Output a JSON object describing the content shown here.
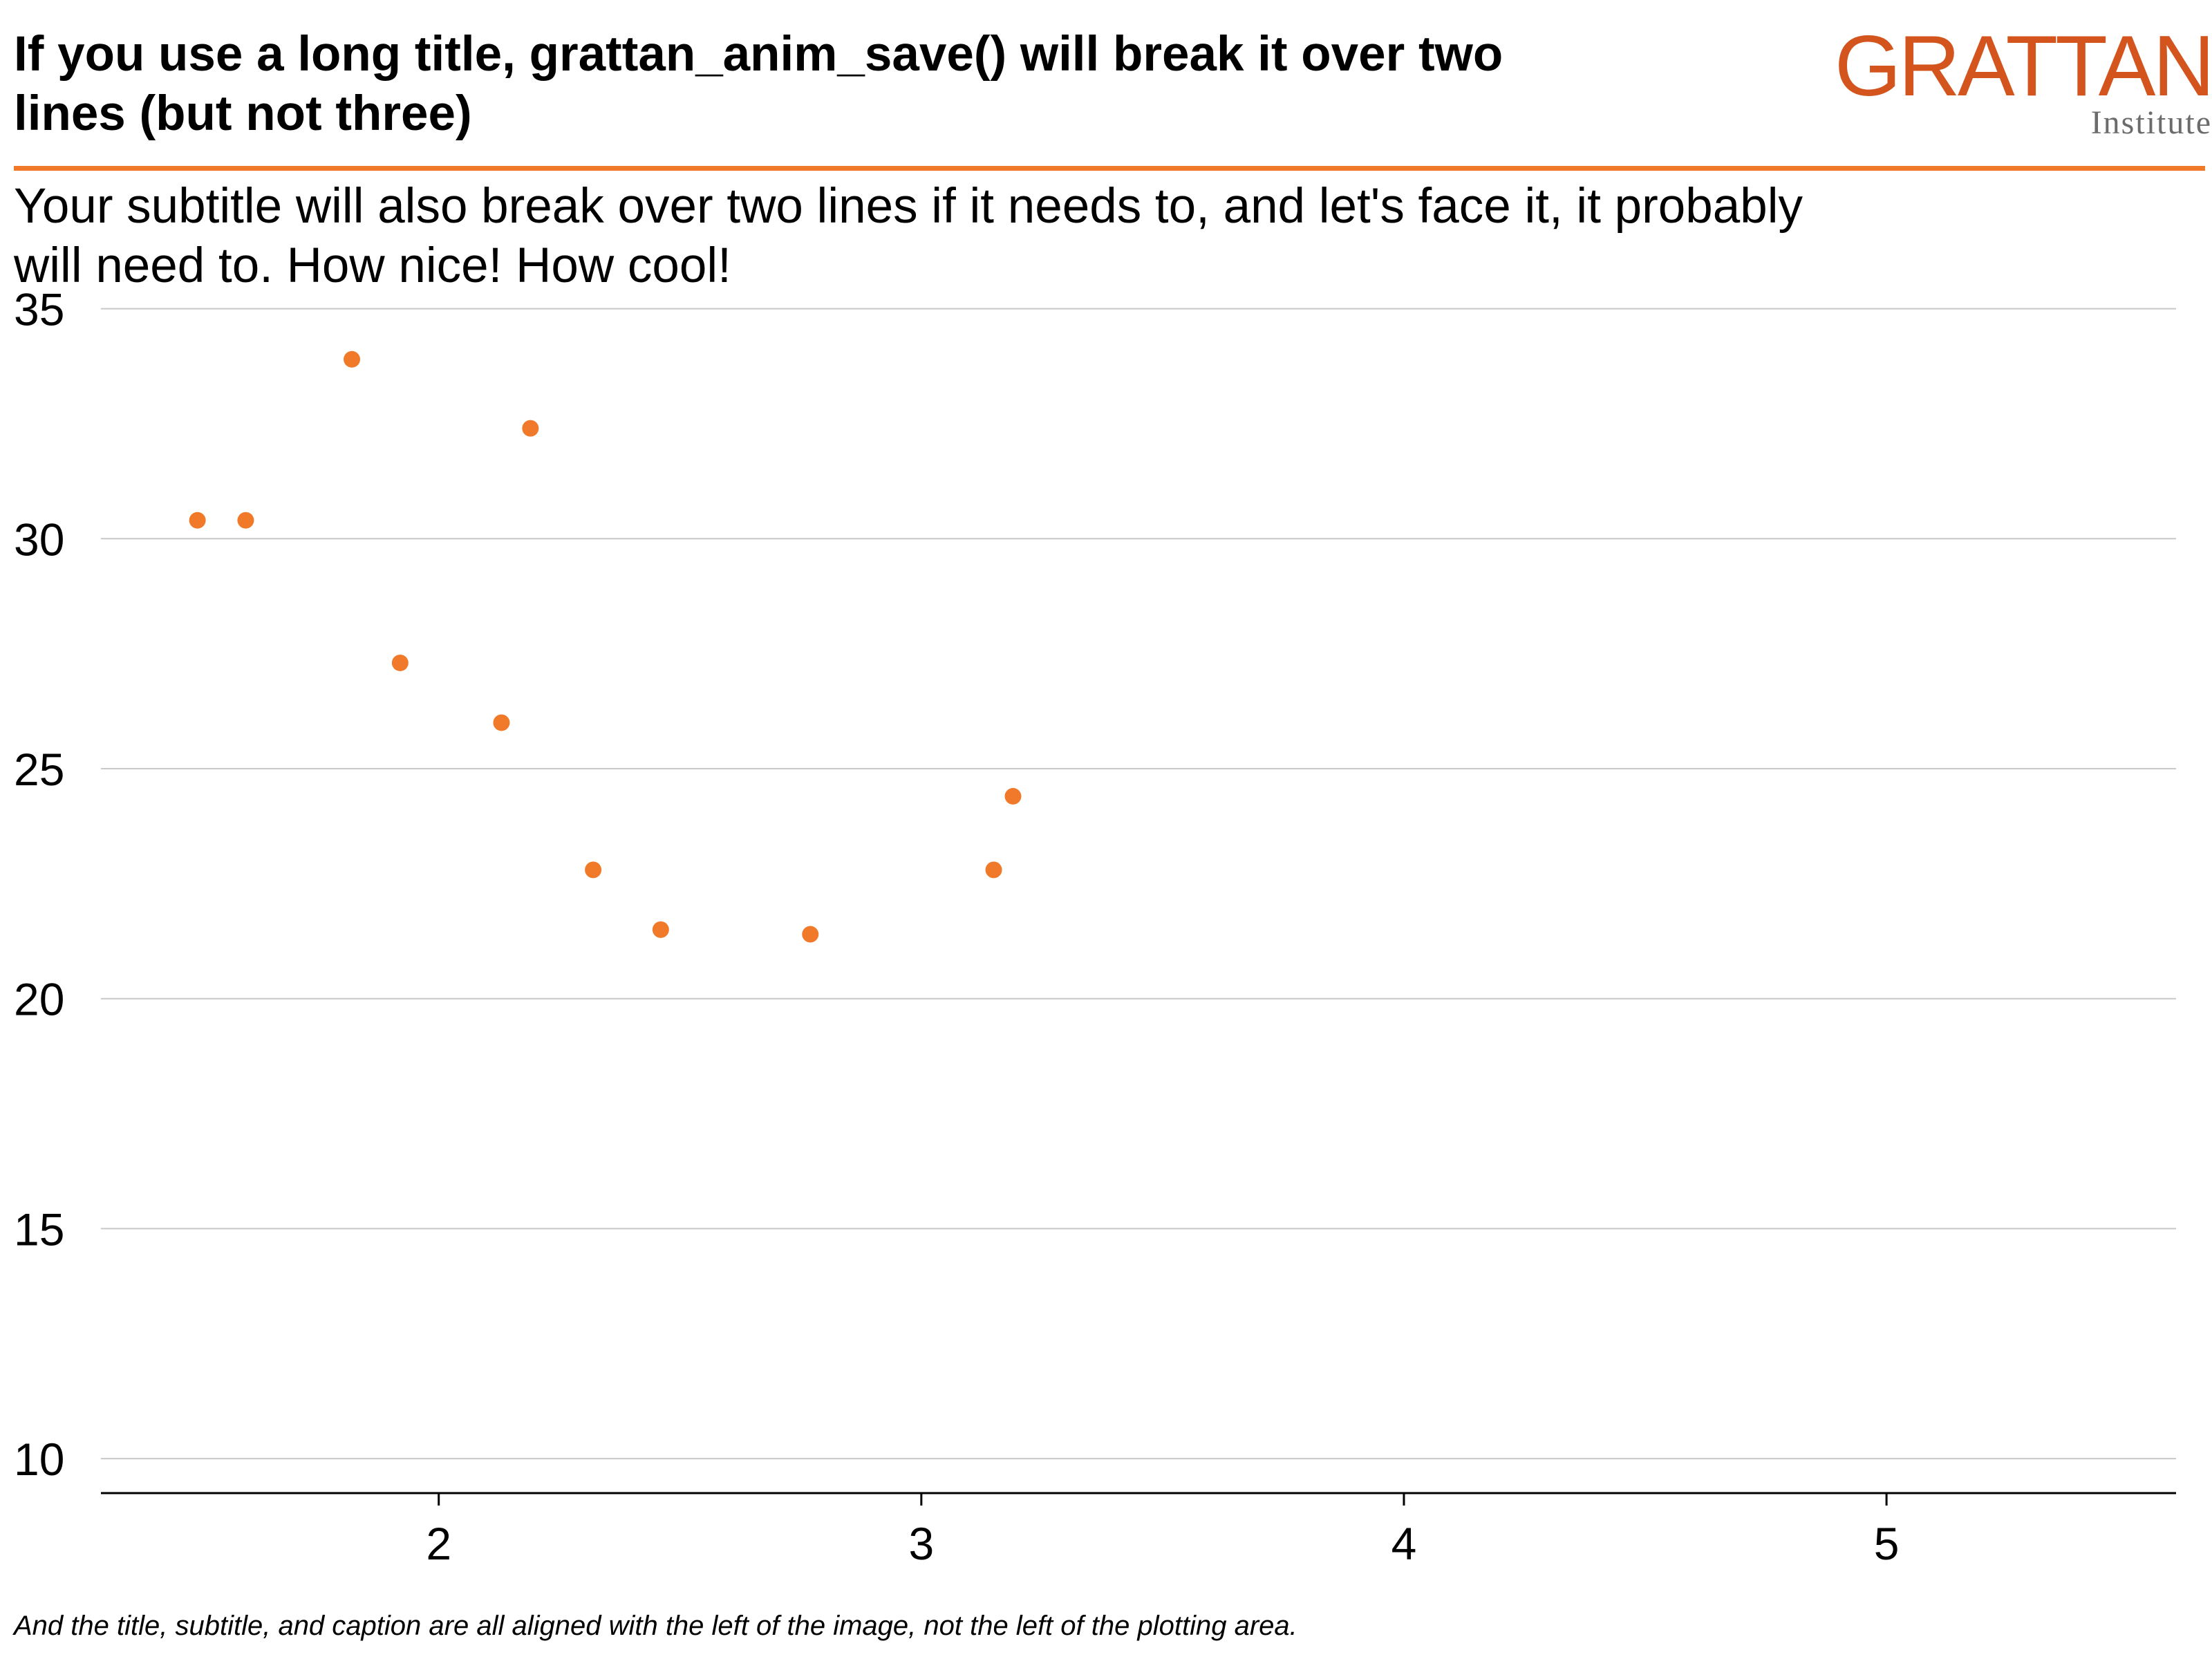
{
  "title": "If you use a long title, grattan_anim_save() will break it over two lines (but not three)",
  "subtitle": "Your subtitle will also break over two lines if it needs to, and let's face it, it probably will need to. How nice! How cool!",
  "caption": "And the title, subtitle, and caption are all aligned with the left of the image, not the left of the plotting area.",
  "logo": {
    "wordmark": "GRATTAN",
    "subtext": "Institute"
  },
  "colors": {
    "accent": "#F07A2A",
    "logo": "#D4541E",
    "grid": "#C8C8C8",
    "axis": "#000000"
  },
  "chart_data": {
    "type": "scatter",
    "xlim": [
      1.3,
      5.6
    ],
    "ylim": [
      9.25,
      35.4
    ],
    "x_ticks": [
      2,
      3,
      4,
      5
    ],
    "y_ticks": [
      10,
      15,
      20,
      25,
      30,
      35
    ],
    "grid": "horizontal",
    "points": [
      {
        "x": 1.5,
        "y": 30.4
      },
      {
        "x": 1.6,
        "y": 30.4
      },
      {
        "x": 1.82,
        "y": 33.9
      },
      {
        "x": 1.92,
        "y": 27.3
      },
      {
        "x": 2.13,
        "y": 26.0
      },
      {
        "x": 2.19,
        "y": 32.4
      },
      {
        "x": 2.32,
        "y": 22.8
      },
      {
        "x": 2.46,
        "y": 21.5
      },
      {
        "x": 2.77,
        "y": 21.4
      },
      {
        "x": 3.15,
        "y": 22.8
      },
      {
        "x": 3.19,
        "y": 24.4
      }
    ]
  }
}
